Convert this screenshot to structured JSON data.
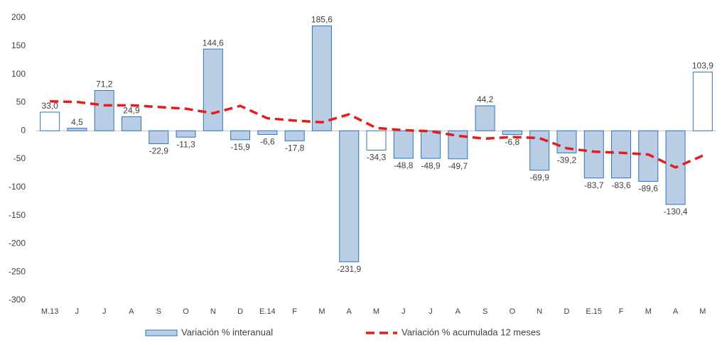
{
  "chart_data": {
    "type": "bar",
    "categories": [
      "M.13",
      "J",
      "J",
      "A",
      "S",
      "O",
      "N",
      "D",
      "E.14",
      "F",
      "M",
      "A",
      "M",
      "J",
      "J",
      "A",
      "S",
      "O",
      "N",
      "D",
      "E.15",
      "F",
      "M",
      "A",
      "M"
    ],
    "series": [
      {
        "name": "Variación % interanual",
        "type": "bar",
        "color": "#b9cde5",
        "edge_color": "#2e75b6",
        "colors": [
          "#ffffff",
          "#b9cde5",
          "#b9cde5",
          "#b9cde5",
          "#b9cde5",
          "#b9cde5",
          "#b9cde5",
          "#b9cde5",
          "#b9cde5",
          "#b9cde5",
          "#b9cde5",
          "#b9cde5",
          "#ffffff",
          "#b9cde5",
          "#b9cde5",
          "#b9cde5",
          "#b9cde5",
          "#b9cde5",
          "#b9cde5",
          "#b9cde5",
          "#b9cde5",
          "#b9cde5",
          "#b9cde5",
          "#b9cde5",
          "#ffffff"
        ],
        "values": [
          33.0,
          4.5,
          71.2,
          24.9,
          -22.9,
          -11.3,
          144.6,
          -15.9,
          -6.6,
          -17.8,
          185.6,
          -231.9,
          -34.3,
          -48.8,
          -48.9,
          -49.7,
          44.2,
          -6.8,
          -69.9,
          -39.2,
          -83.7,
          -83.6,
          -89.6,
          -130.4,
          103.9
        ],
        "value_labels": [
          "33,0",
          "4,5",
          "71,2",
          "24,9",
          "-22,9",
          "-11,3",
          "144,6",
          "-15,9",
          "-6,6",
          "-17,8",
          "185,6",
          "-231,9",
          "-34,3",
          "-48,8",
          "-48,9",
          "-49,7",
          "44,2",
          "-6,8",
          "-69,9",
          "-39,2",
          "-83,7",
          "-83,6",
          "-89,6",
          "-130,4",
          "103,9"
        ]
      },
      {
        "name": "Variación % acumulada 12 meses",
        "type": "line",
        "color": "#e41c1c",
        "dashed": true,
        "values": [
          52,
          51,
          45,
          45,
          42,
          39,
          31,
          44,
          22,
          18,
          15,
          29,
          5,
          1,
          -1,
          -9,
          -14,
          -11,
          -13,
          -31,
          -37,
          -39,
          -42,
          -65,
          -44
        ]
      }
    ],
    "ylim": [
      -300,
      200
    ],
    "yticks": [
      -300,
      -250,
      -200,
      -150,
      -100,
      -50,
      0,
      50,
      100,
      150,
      200
    ],
    "grid": false,
    "legend": "bottom"
  }
}
